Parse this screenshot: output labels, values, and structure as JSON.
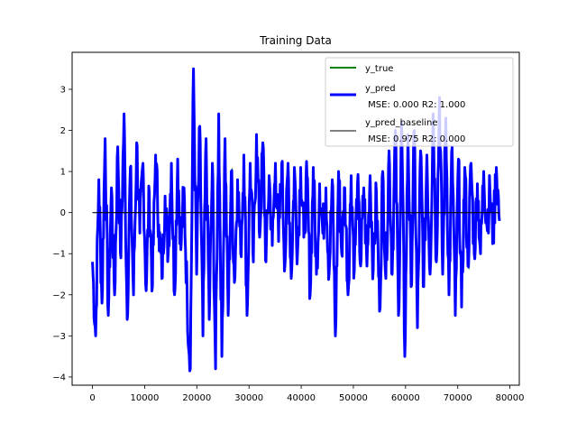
{
  "chart_data": {
    "type": "line",
    "title": "Training Data",
    "xlabel": "",
    "ylabel": "",
    "xlim": [
      -3900,
      81800
    ],
    "ylim": [
      -4.2,
      3.9
    ],
    "xticks": [
      0,
      10000,
      20000,
      30000,
      40000,
      50000,
      60000,
      70000,
      80000
    ],
    "yticks": [
      -4,
      -3,
      -2,
      -1,
      0,
      1,
      2,
      3
    ],
    "xtick_labels": [
      "0",
      "10000",
      "20000",
      "30000",
      "40000",
      "50000",
      "60000",
      "70000",
      "80000"
    ],
    "ytick_labels": [
      "−4",
      "−3",
      "−2",
      "−1",
      "0",
      "1",
      "2",
      "3"
    ],
    "grid": false,
    "legend_position": "top-right",
    "series": [
      {
        "name": "y_true",
        "color": "#008000",
        "x_range": [
          0,
          78000
        ],
        "y_pattern": "noisy",
        "values": [
          -1.2,
          -3.0,
          0.8,
          -2.2,
          1.8,
          -2.5,
          0.6,
          -2.0,
          1.6,
          -1.1,
          2.4,
          -2.6,
          1.1,
          -2.0,
          1.7,
          -0.5,
          1.2,
          -1.9,
          0.5,
          -1.8,
          1.4,
          -0.3,
          -1.6,
          0.4,
          -1.0,
          1.2,
          -2.0,
          1.3,
          -0.9,
          0.6,
          -2.1,
          -3.8,
          3.5,
          -1.5,
          2.1,
          -3.0,
          1.8,
          -2.6,
          1.2,
          -3.8,
          2.4,
          -3.5,
          1.8,
          -2.5,
          1.0,
          -1.7,
          0.8,
          -1.0,
          1.4,
          -2.5,
          1.2,
          -1.2,
          1.9,
          -0.6,
          1.7,
          -1.2,
          0.9,
          -0.8,
          1.2,
          -0.7,
          1.2,
          -1.3,
          1.2,
          -1.6,
          1.1,
          -1.0,
          1.1,
          -0.6,
          0.9,
          -2.0,
          1.1,
          -1.5,
          0.7,
          -0.5,
          0.6,
          -1.5,
          0.8,
          -3.0,
          1.0,
          -1.0,
          0.6,
          -2.0,
          0.9,
          -1.4,
          0.7,
          -1.3,
          0.6,
          -1.3,
          0.9,
          -1.4,
          0.5,
          -2.4,
          1.0,
          -1.6,
          1.5,
          -1.5,
          2.0,
          -2.5,
          2.2,
          -3.5,
          1.9,
          -1.8,
          2.0,
          -2.8,
          1.5,
          -1.8,
          1.4,
          -1.5,
          2.4,
          -1.2,
          2.8,
          -1.5,
          2.3,
          -2.0,
          1.6,
          -2.5,
          1.3,
          -2.3,
          1.1,
          -1.3,
          1.2,
          -1.0,
          0.7,
          -1.0,
          1.0,
          -0.3,
          0.5,
          -0.6,
          1.1,
          -0.2
        ]
      },
      {
        "name": "y_pred\n MSE: 0.000 R2: 1.000",
        "color": "#0000ff",
        "x_range": [
          0,
          78000
        ],
        "values_same_as": "y_true"
      },
      {
        "name": "y_pred_baseline\n MSE: 0.975 R2: 0.000",
        "color": "#000000",
        "x_range": [
          0,
          78000
        ],
        "constant_value": 0.0
      }
    ]
  }
}
